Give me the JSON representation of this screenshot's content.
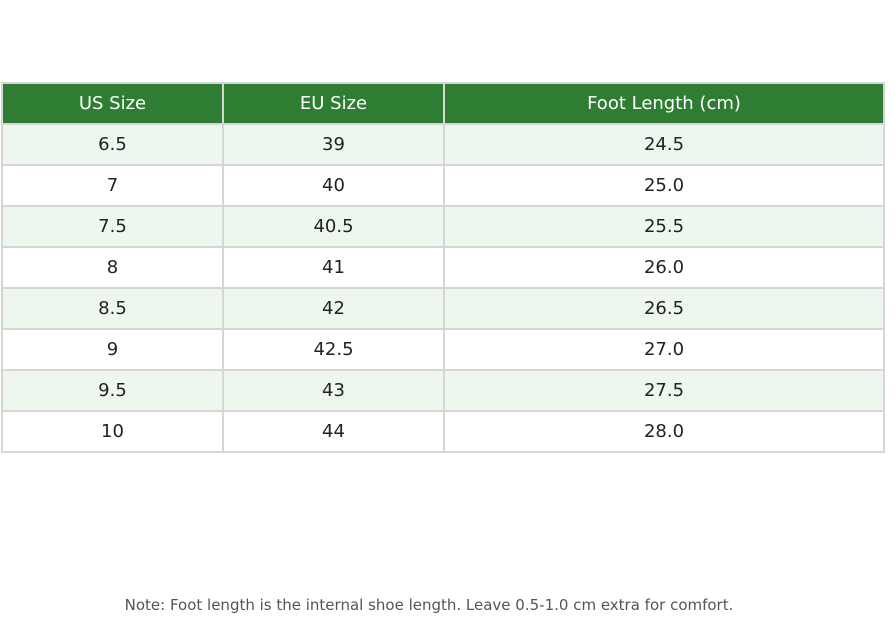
{
  "table": {
    "header": [
      "US Size",
      "EU Size",
      "Foot Length (cm)"
    ],
    "rows": [
      [
        "6.5",
        "39",
        "24.5"
      ],
      [
        "7",
        "40",
        "25.0"
      ],
      [
        "7.5",
        "40.5",
        "25.5"
      ],
      [
        "8",
        "41",
        "26.0"
      ],
      [
        "8.5",
        "42",
        "26.5"
      ],
      [
        "9",
        "42.5",
        "27.0"
      ],
      [
        "9.5",
        "43",
        "27.5"
      ],
      [
        "10",
        "44",
        "28.0"
      ]
    ]
  },
  "note": "Note: Foot length is the internal shoe length. Leave 0.5-1.0 cm extra for comfort."
}
